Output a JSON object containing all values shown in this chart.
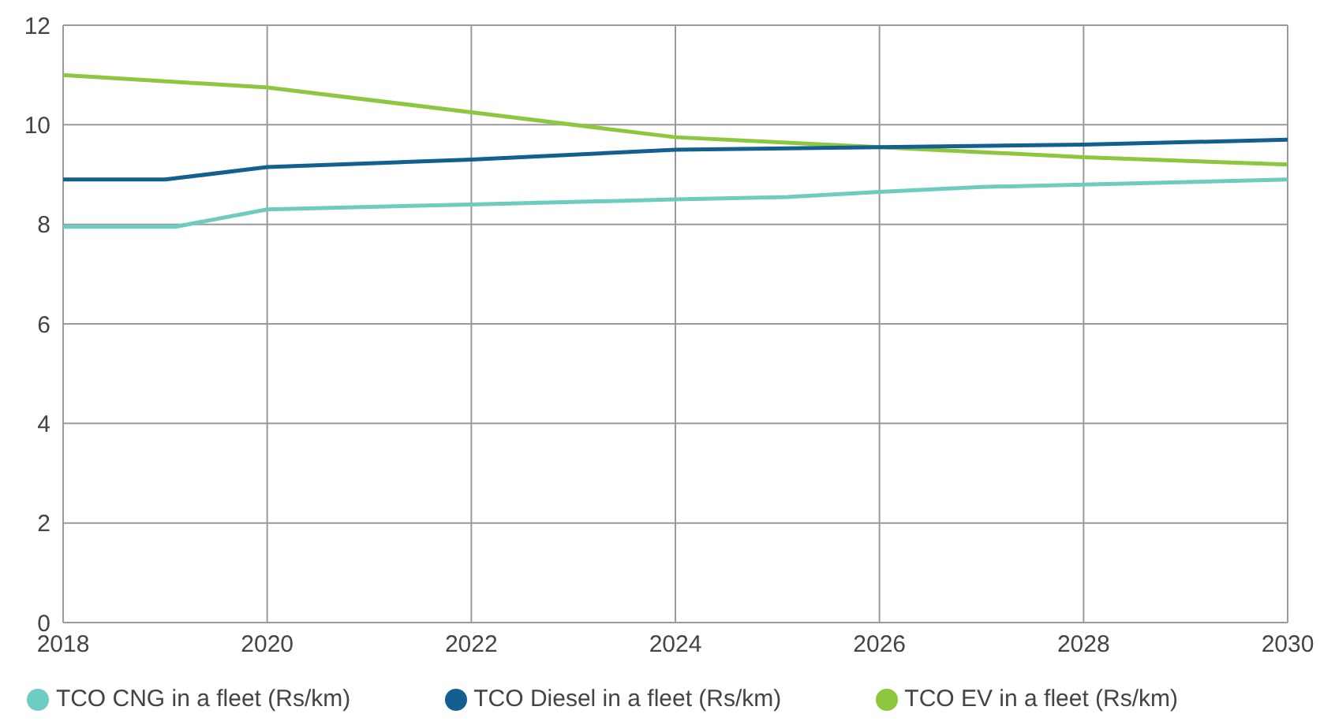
{
  "chart_data": {
    "type": "line",
    "xlim": [
      2018,
      2030
    ],
    "xticks": [
      2018,
      2020,
      2022,
      2024,
      2026,
      2028,
      2030
    ],
    "ylim": [
      0,
      12
    ],
    "yticks": [
      0,
      2,
      4,
      6,
      8,
      10,
      12
    ],
    "grid": true,
    "legend": "bottom",
    "marker": "none",
    "line_style": "solid",
    "series": [
      {
        "name": "TCO EV in a fleet (Rs/km)",
        "color": "#8dc63f",
        "x": [
          2018,
          2020,
          2022,
          2024,
          2026,
          2028,
          2030
        ],
        "values": [
          11.0,
          10.75,
          10.25,
          9.75,
          9.55,
          9.35,
          9.2
        ]
      },
      {
        "name": "TCO Diesel in a fleet (Rs/km)",
        "color": "#135f8f",
        "x": [
          2018,
          2019,
          2020,
          2022,
          2024,
          2026,
          2028,
          2030
        ],
        "values": [
          8.9,
          8.9,
          9.15,
          9.3,
          9.5,
          9.55,
          9.6,
          9.7
        ]
      },
      {
        "name": "TCO CNG in a fleet (Rs/km)",
        "color": "#6ecbbf",
        "x": [
          2018,
          2019.1,
          2020,
          2022,
          2024,
          2025.1,
          2026,
          2027,
          2028,
          2030
        ],
        "values": [
          7.95,
          7.95,
          8.3,
          8.4,
          8.5,
          8.55,
          8.65,
          8.75,
          8.8,
          8.9
        ]
      }
    ]
  }
}
